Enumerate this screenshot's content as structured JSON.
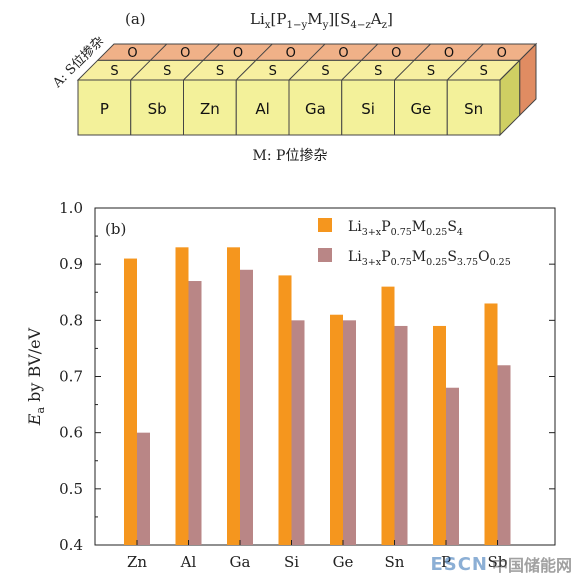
{
  "panel_a": {
    "label": "(a)",
    "formula": "Li_x[P_{1−y}M_y][S_{4−z}A_z]",
    "formula_parts": [
      "Li",
      "x",
      "[P",
      "1−y",
      "M",
      "y",
      "][S",
      "4−z",
      "A",
      "z",
      "]"
    ],
    "side_label": "A: S位掺杂",
    "bottom_label": "M: P位掺杂",
    "cells": [
      "P",
      "Sb",
      "Zn",
      "Al",
      "Ga",
      "Si",
      "Ge",
      "Sn"
    ],
    "s_label": "S",
    "o_label": "O",
    "colors": {
      "front": "#f3f19a",
      "top": "#f7efa0",
      "side": "#cfcf63",
      "top_strip": "#f0b188",
      "end_face": "#e08c62"
    }
  },
  "chart_data": {
    "type": "bar",
    "panel_label": "(b)",
    "categories": [
      "Zn",
      "Al",
      "Ga",
      "Si",
      "Ge",
      "Sn",
      "P",
      "Sb"
    ],
    "series": [
      {
        "name": "Li3+xP0.75M0.25S4",
        "color": "#f5961e",
        "values": [
          0.91,
          0.93,
          0.93,
          0.88,
          0.81,
          0.86,
          0.79,
          0.83
        ]
      },
      {
        "name": "Li3+xP0.75M0.25S3.75O0.25",
        "color": "#b98686",
        "values": [
          0.6,
          0.87,
          0.89,
          0.8,
          0.8,
          0.79,
          0.68,
          0.72
        ]
      }
    ],
    "legend_parts": [
      [
        "Li",
        "3+x",
        "P",
        "0.75",
        "M",
        "0.25",
        "S",
        "4"
      ],
      [
        "Li",
        "3+x",
        "P",
        "0.75",
        "M",
        "0.25",
        "S",
        "3.75",
        "O",
        "0.25"
      ]
    ],
    "ylabel": "E_a by BV/eV",
    "ylabel_parts": [
      "E",
      "a",
      " by BV/eV"
    ],
    "ylim": [
      0.4,
      1.0
    ],
    "yticks": [
      "0.4",
      "0.5",
      "0.6",
      "0.7",
      "0.8",
      "0.9",
      "1.0"
    ],
    "grid": false,
    "legend_position": "top-right"
  },
  "watermark": {
    "brand": "ESCN",
    "site": "中国储能网"
  }
}
